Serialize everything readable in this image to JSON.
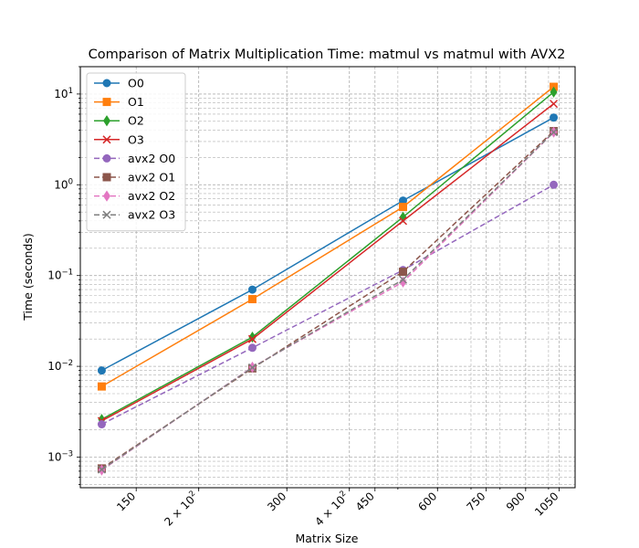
{
  "chart_data": {
    "type": "line",
    "title": "Comparison of Matrix Multiplication Time: matmul vs matmul with AVX2",
    "xlabel": "Matrix Size",
    "ylabel": "Time (seconds)",
    "xscale": "log",
    "yscale": "log",
    "xlim": [
      116,
      1130
    ],
    "ylim": [
      0.00046,
      20
    ],
    "grid": true,
    "legend_position": "top-left",
    "x": [
      128,
      256,
      512,
      1024
    ],
    "x_ticks": [
      {
        "value": 150,
        "label": "150"
      },
      {
        "value": 200,
        "label": "2 × 10",
        "sup": "2"
      },
      {
        "value": 300,
        "label": "300"
      },
      {
        "value": 400,
        "label": "4 × 10",
        "sup": "2"
      },
      {
        "value": 450,
        "label": "450"
      },
      {
        "value": 600,
        "label": "600"
      },
      {
        "value": 750,
        "label": "750"
      },
      {
        "value": 900,
        "label": "900"
      },
      {
        "value": 1050,
        "label": "1050"
      }
    ],
    "y_ticks": [
      {
        "value": 0.001,
        "base": "10",
        "exp": "−3"
      },
      {
        "value": 0.01,
        "base": "10",
        "exp": "−2"
      },
      {
        "value": 0.1,
        "base": "10",
        "exp": "−1"
      },
      {
        "value": 1,
        "base": "10",
        "exp": "0"
      },
      {
        "value": 10,
        "base": "10",
        "exp": "1"
      }
    ],
    "series": [
      {
        "name": "O0",
        "values": [
          0.009,
          0.07,
          0.67,
          5.5
        ],
        "color": "#1f77b4",
        "marker": "circle",
        "dash": "solid"
      },
      {
        "name": "O1",
        "values": [
          0.006,
          0.055,
          0.57,
          12
        ],
        "color": "#ff7f0e",
        "marker": "square",
        "dash": "solid"
      },
      {
        "name": "O2",
        "values": [
          0.0026,
          0.021,
          0.44,
          10.5
        ],
        "color": "#2ca02c",
        "marker": "diamond",
        "dash": "solid"
      },
      {
        "name": "O3",
        "values": [
          0.0025,
          0.02,
          0.4,
          7.8
        ],
        "color": "#d62728",
        "marker": "x",
        "dash": "solid"
      },
      {
        "name": "avx2 O0",
        "values": [
          0.0023,
          0.016,
          0.115,
          1.0
        ],
        "color": "#9467bd",
        "marker": "circle",
        "dash": "dashed"
      },
      {
        "name": "avx2 O1",
        "values": [
          0.00075,
          0.0095,
          0.11,
          3.9
        ],
        "color": "#8c564b",
        "marker": "square",
        "dash": "dashed"
      },
      {
        "name": "avx2 O2",
        "values": [
          0.00072,
          0.0098,
          0.085,
          3.8
        ],
        "color": "#e377c2",
        "marker": "diamond",
        "dash": "dashed"
      },
      {
        "name": "avx2 O3",
        "values": [
          0.00073,
          0.0097,
          0.09,
          3.8
        ],
        "color": "#7f7f7f",
        "marker": "x",
        "dash": "dashed"
      }
    ]
  }
}
